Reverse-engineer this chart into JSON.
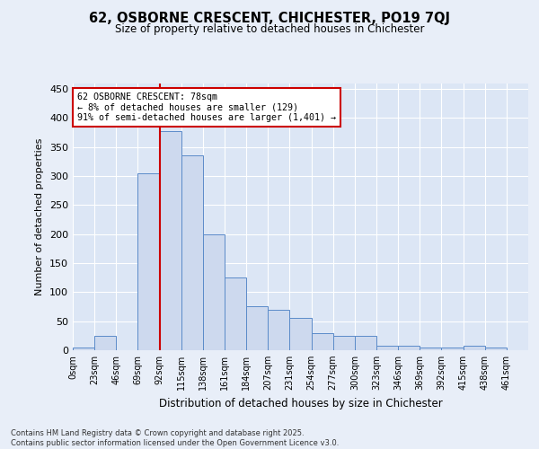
{
  "title_line1": "62, OSBORNE CRESCENT, CHICHESTER, PO19 7QJ",
  "title_line2": "Size of property relative to detached houses in Chichester",
  "xlabel": "Distribution of detached houses by size in Chichester",
  "ylabel": "Number of detached properties",
  "bar_color": "#cdd9ee",
  "bar_edge_color": "#5b8bc9",
  "bin_labels": [
    "0sqm",
    "23sqm",
    "46sqm",
    "69sqm",
    "92sqm",
    "115sqm",
    "138sqm",
    "161sqm",
    "184sqm",
    "207sqm",
    "231sqm",
    "254sqm",
    "277sqm",
    "300sqm",
    "323sqm",
    "346sqm",
    "369sqm",
    "392sqm",
    "415sqm",
    "438sqm",
    "461sqm"
  ],
  "bar_heights": [
    5,
    25,
    0,
    305,
    378,
    335,
    200,
    125,
    75,
    70,
    55,
    30,
    25,
    25,
    8,
    8,
    5,
    5,
    8,
    5,
    0
  ],
  "vline_x": 4.0,
  "vline_color": "#cc0000",
  "annotation_text": "62 OSBORNE CRESCENT: 78sqm\n← 8% of detached houses are smaller (129)\n91% of semi-detached houses are larger (1,401) →",
  "annotation_box_color": "#cc0000",
  "ylim": [
    0,
    460
  ],
  "yticks": [
    0,
    50,
    100,
    150,
    200,
    250,
    300,
    350,
    400,
    450
  ],
  "footer_text": "Contains HM Land Registry data © Crown copyright and database right 2025.\nContains public sector information licensed under the Open Government Licence v3.0.",
  "background_color": "#e8eef8",
  "plot_bg_color": "#dce6f5",
  "grid_color": "#ffffff"
}
